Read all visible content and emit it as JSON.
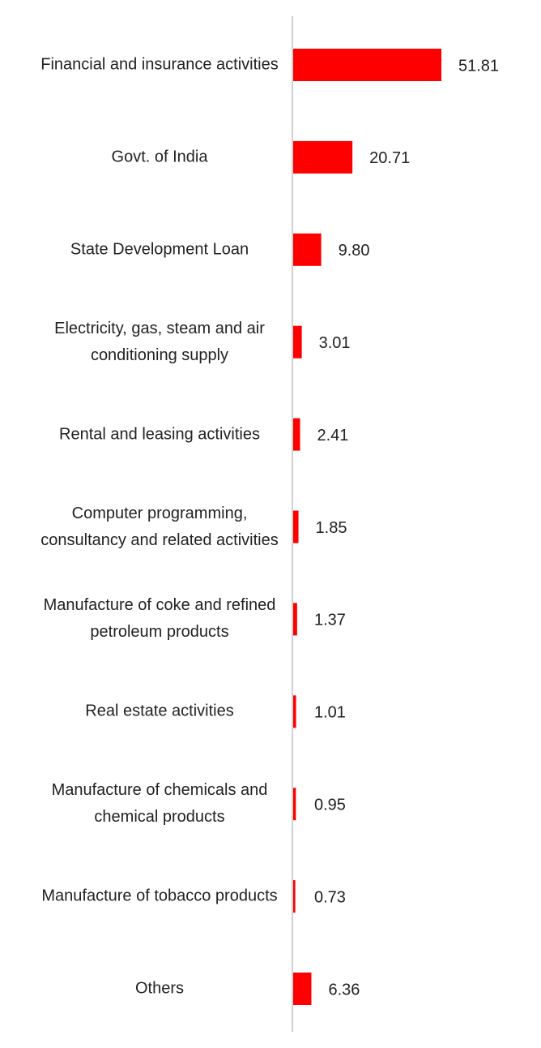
{
  "chart_data": {
    "type": "bar",
    "orientation": "horizontal",
    "categories": [
      "Financial and insurance activities",
      "Govt. of India",
      "State Development Loan",
      "Electricity, gas, steam and air conditioning supply",
      "Rental and leasing activities",
      "Computer programming, consultancy and related activities",
      "Manufacture of coke and refined petroleum products",
      "Real estate activities",
      "Manufacture of chemicals and chemical products",
      "Manufacture of tobacco products",
      "Others"
    ],
    "values": [
      51.81,
      20.71,
      9.8,
      3.01,
      2.41,
      1.85,
      1.37,
      1.01,
      0.95,
      0.73,
      6.36
    ],
    "value_labels": [
      "51.81",
      "20.71",
      "9.80",
      "3.01",
      "2.41",
      "1.85",
      "1.37",
      "1.01",
      "0.95",
      "0.73",
      "6.36"
    ],
    "color": "#ff0000"
  }
}
